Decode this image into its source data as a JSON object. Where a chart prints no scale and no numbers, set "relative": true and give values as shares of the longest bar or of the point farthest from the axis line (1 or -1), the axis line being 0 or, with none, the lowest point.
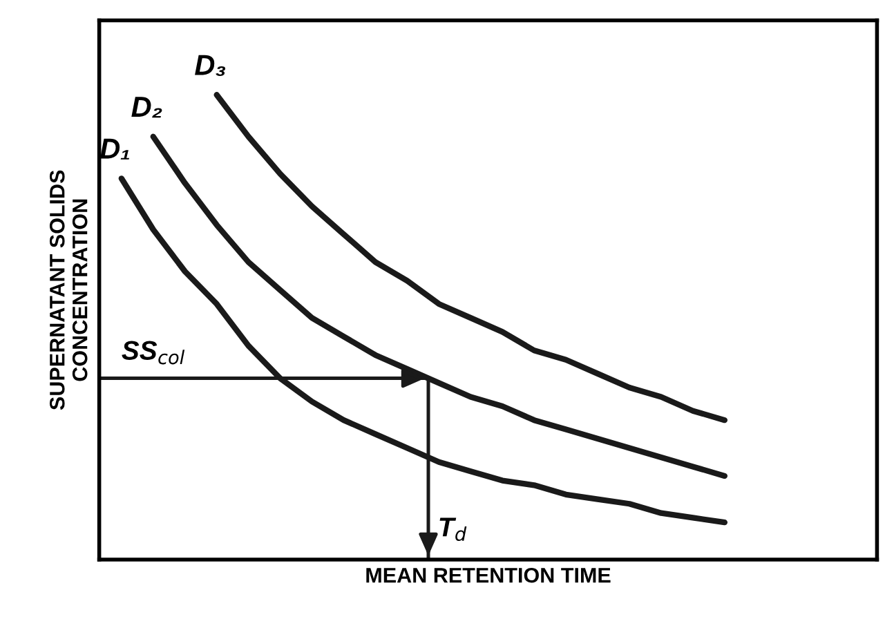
{
  "chart_data": {
    "type": "line",
    "relative": true,
    "xlabel": "MEAN RETENTION TIME",
    "ylabel": "SUPERNATANT SOLIDS\nCONCENTRATION",
    "categories": [
      null,
      null,
      null,
      null,
      null,
      null,
      null,
      null,
      null,
      null,
      null,
      null,
      null,
      null,
      null,
      null,
      null,
      null,
      null,
      null
    ],
    "series": [
      {
        "name": "D₁",
        "color": "#1a1a1a",
        "values": [
          0.82,
          0.71,
          0.62,
          0.55,
          0.46,
          0.39,
          0.34,
          0.3,
          0.27,
          0.24,
          0.21,
          0.19,
          0.17,
          0.16,
          0.14,
          0.13,
          0.12,
          0.1,
          0.09,
          0.08
        ]
      },
      {
        "name": "D₂",
        "color": "#1a1a1a",
        "values": [
          null,
          0.91,
          0.81,
          0.72,
          0.64,
          0.58,
          0.52,
          0.48,
          0.44,
          0.41,
          0.38,
          0.35,
          0.33,
          0.3,
          0.28,
          0.26,
          0.24,
          0.22,
          0.2,
          0.18
        ]
      },
      {
        "name": "D₃",
        "color": "#1a1a1a",
        "values": [
          null,
          null,
          null,
          1.0,
          0.91,
          0.83,
          0.76,
          0.7,
          0.64,
          0.6,
          0.55,
          0.52,
          0.49,
          0.45,
          0.43,
          0.4,
          0.37,
          0.35,
          0.32,
          0.3
        ]
      }
    ],
    "ref_lines": [
      {
        "axis": "y",
        "value": 0.39,
        "label": "SS$_{col}$",
        "color": "#1a1a1a"
      }
    ],
    "annotations": [
      "T$_{d}$"
    ],
    "legend": false,
    "marker": "none",
    "line_style": "solid"
  }
}
